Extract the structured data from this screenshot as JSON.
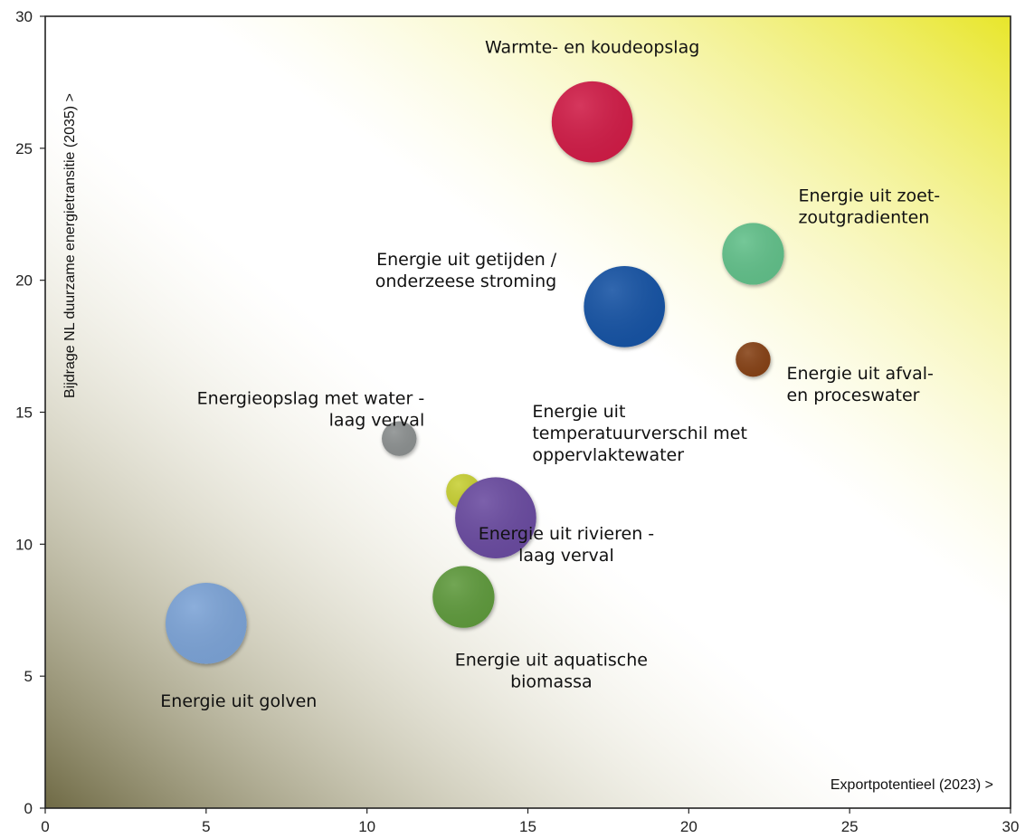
{
  "chart_data": {
    "type": "scatter",
    "subtype": "bubble",
    "title": "",
    "xlabel": "Exportpotentieel (2023) >",
    "ylabel": "Bijdrage NL duurzame energietransitie (2035)  >",
    "xlim": [
      0,
      30
    ],
    "ylim": [
      0,
      30
    ],
    "xticks": [
      0,
      5,
      10,
      15,
      20,
      25,
      30
    ],
    "yticks": [
      0,
      5,
      10,
      15,
      20,
      25,
      30
    ],
    "grid": false,
    "legend": "none",
    "background_gradients": {
      "top_right": "#e8e62a",
      "bottom_left": "#6f6a45"
    },
    "points": [
      {
        "label": [
          "Warmte- en koudeopslag"
        ],
        "x": 17,
        "y": 26,
        "size": 2.1,
        "color": "#d01e46"
      },
      {
        "label": [
          "Energie uit zoet-",
          "zoutgradienten"
        ],
        "x": 22,
        "y": 21,
        "size": 1.6,
        "color": "#62c08a"
      },
      {
        "label": [
          "Energie uit getijden /",
          "onderzeese stroming"
        ],
        "x": 18,
        "y": 19,
        "size": 2.1,
        "color": "#1353a4"
      },
      {
        "label": [
          "Energie uit afval-",
          "en proceswater"
        ],
        "x": 22,
        "y": 17,
        "size": 0.9,
        "color": "#864319"
      },
      {
        "label": [
          "Energieopslag met water -",
          "laag verval"
        ],
        "x": 11,
        "y": 14,
        "size": 0.9,
        "color": "#8c9090"
      },
      {
        "label": [
          "Energie uit",
          "temperatuurverschil met",
          "oppervlaktewater"
        ],
        "x": 13,
        "y": 12,
        "size": 0.9,
        "color": "#c8d034"
      },
      {
        "label": [
          "Energie uit rivieren -",
          "laag verval"
        ],
        "x": 14,
        "y": 11,
        "size": 2.1,
        "color": "#6b4ba0"
      },
      {
        "label": [
          "Energie uit aquatische",
          "biomassa"
        ],
        "x": 13,
        "y": 8,
        "size": 1.6,
        "color": "#5f9a3d"
      },
      {
        "label": [
          "Energie uit golven"
        ],
        "x": 5,
        "y": 7,
        "size": 2.1,
        "color": "#7ba3d6"
      }
    ]
  }
}
